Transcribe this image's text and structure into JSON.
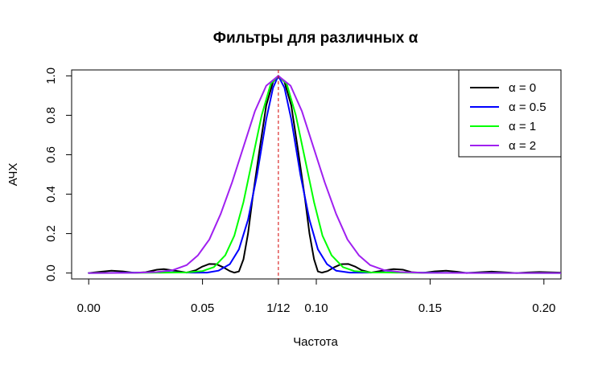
{
  "chart_data": {
    "type": "line",
    "title": "Фильтры для различных α",
    "xlabel": "Частота",
    "ylabel": "АЧХ",
    "xlim": [
      -0.0075,
      0.2075
    ],
    "ylim": [
      -0.03,
      1.03
    ],
    "x_ticks": [
      0.0,
      0.05,
      0.0833333,
      0.1,
      0.15,
      0.2
    ],
    "x_tick_labels": [
      "0.00",
      "0.05",
      "1/12",
      "0.10",
      "0.15",
      "0.20"
    ],
    "y_ticks": [
      0.0,
      0.2,
      0.4,
      0.6,
      0.8,
      1.0
    ],
    "y_tick_labels": [
      "0.0",
      "0.2",
      "0.4",
      "0.6",
      "0.8",
      "1.0"
    ],
    "vline": {
      "x": 0.0833333,
      "color": "#d40000",
      "style": "dashed"
    },
    "legend": {
      "position": "top-right"
    },
    "grid": false,
    "series": [
      {
        "name": "α = 0",
        "color": "#000000",
        "points": [
          [
            0.0,
            0.0
          ],
          [
            0.005,
            0.006
          ],
          [
            0.01,
            0.012
          ],
          [
            0.015,
            0.008
          ],
          [
            0.02,
            0.001
          ],
          [
            0.025,
            0.004
          ],
          [
            0.03,
            0.017
          ],
          [
            0.033,
            0.02
          ],
          [
            0.038,
            0.012
          ],
          [
            0.043,
            0.002
          ],
          [
            0.047,
            0.014
          ],
          [
            0.05,
            0.033
          ],
          [
            0.053,
            0.046
          ],
          [
            0.056,
            0.045
          ],
          [
            0.059,
            0.03
          ],
          [
            0.062,
            0.01
          ],
          [
            0.064,
            0.002
          ],
          [
            0.066,
            0.008
          ],
          [
            0.068,
            0.07
          ],
          [
            0.07,
            0.2
          ],
          [
            0.072,
            0.38
          ],
          [
            0.075,
            0.62
          ],
          [
            0.078,
            0.85
          ],
          [
            0.081,
            0.97
          ],
          [
            0.0833,
            1.0
          ],
          [
            0.086,
            0.97
          ],
          [
            0.089,
            0.85
          ],
          [
            0.092,
            0.62
          ],
          [
            0.095,
            0.38
          ],
          [
            0.097,
            0.2
          ],
          [
            0.099,
            0.07
          ],
          [
            0.1007,
            0.008
          ],
          [
            0.1025,
            0.002
          ],
          [
            0.105,
            0.01
          ],
          [
            0.108,
            0.03
          ],
          [
            0.111,
            0.045
          ],
          [
            0.114,
            0.046
          ],
          [
            0.117,
            0.033
          ],
          [
            0.12,
            0.014
          ],
          [
            0.124,
            0.002
          ],
          [
            0.129,
            0.012
          ],
          [
            0.134,
            0.02
          ],
          [
            0.138,
            0.017
          ],
          [
            0.142,
            0.004
          ],
          [
            0.147,
            0.001
          ],
          [
            0.152,
            0.008
          ],
          [
            0.157,
            0.012
          ],
          [
            0.162,
            0.006
          ],
          [
            0.166,
            0.0
          ],
          [
            0.172,
            0.004
          ],
          [
            0.177,
            0.007
          ],
          [
            0.182,
            0.004
          ],
          [
            0.188,
            0.0
          ],
          [
            0.193,
            0.003
          ],
          [
            0.198,
            0.005
          ],
          [
            0.2075,
            0.002
          ]
        ]
      },
      {
        "name": "α = 0.5",
        "color": "#0000ff",
        "points": [
          [
            0.0,
            0.0
          ],
          [
            0.02,
            0.002
          ],
          [
            0.035,
            0.004
          ],
          [
            0.045,
            0.002
          ],
          [
            0.052,
            0.002
          ],
          [
            0.057,
            0.012
          ],
          [
            0.062,
            0.045
          ],
          [
            0.066,
            0.12
          ],
          [
            0.07,
            0.27
          ],
          [
            0.074,
            0.5
          ],
          [
            0.078,
            0.78
          ],
          [
            0.081,
            0.94
          ],
          [
            0.0833,
            1.0
          ],
          [
            0.086,
            0.94
          ],
          [
            0.089,
            0.78
          ],
          [
            0.093,
            0.5
          ],
          [
            0.097,
            0.27
          ],
          [
            0.1007,
            0.12
          ],
          [
            0.1047,
            0.045
          ],
          [
            0.1087,
            0.012
          ],
          [
            0.1147,
            0.002
          ],
          [
            0.122,
            0.002
          ],
          [
            0.132,
            0.004
          ],
          [
            0.147,
            0.002
          ],
          [
            0.16,
            0.001
          ],
          [
            0.18,
            0.001
          ],
          [
            0.2075,
            0.0
          ]
        ]
      },
      {
        "name": "α = 1",
        "color": "#00ff00",
        "points": [
          [
            0.0,
            0.0
          ],
          [
            0.02,
            0.001
          ],
          [
            0.035,
            0.002
          ],
          [
            0.043,
            0.003
          ],
          [
            0.05,
            0.01
          ],
          [
            0.055,
            0.03
          ],
          [
            0.06,
            0.09
          ],
          [
            0.064,
            0.19
          ],
          [
            0.068,
            0.36
          ],
          [
            0.072,
            0.58
          ],
          [
            0.076,
            0.8
          ],
          [
            0.08,
            0.96
          ],
          [
            0.0833,
            1.0
          ],
          [
            0.087,
            0.96
          ],
          [
            0.091,
            0.8
          ],
          [
            0.095,
            0.58
          ],
          [
            0.099,
            0.36
          ],
          [
            0.1027,
            0.19
          ],
          [
            0.1067,
            0.09
          ],
          [
            0.1117,
            0.03
          ],
          [
            0.1167,
            0.01
          ],
          [
            0.124,
            0.003
          ],
          [
            0.135,
            0.002
          ],
          [
            0.15,
            0.001
          ],
          [
            0.18,
            0.0
          ],
          [
            0.2075,
            0.0
          ]
        ]
      },
      {
        "name": "α = 2",
        "color": "#a020f0",
        "points": [
          [
            0.0,
            0.0
          ],
          [
            0.02,
            0.001
          ],
          [
            0.03,
            0.005
          ],
          [
            0.037,
            0.015
          ],
          [
            0.043,
            0.04
          ],
          [
            0.048,
            0.09
          ],
          [
            0.053,
            0.17
          ],
          [
            0.058,
            0.3
          ],
          [
            0.063,
            0.46
          ],
          [
            0.068,
            0.64
          ],
          [
            0.073,
            0.82
          ],
          [
            0.078,
            0.95
          ],
          [
            0.0833,
            1.0
          ],
          [
            0.0887,
            0.95
          ],
          [
            0.0937,
            0.82
          ],
          [
            0.0987,
            0.64
          ],
          [
            0.1037,
            0.46
          ],
          [
            0.1087,
            0.3
          ],
          [
            0.1137,
            0.17
          ],
          [
            0.1187,
            0.09
          ],
          [
            0.1237,
            0.04
          ],
          [
            0.1297,
            0.015
          ],
          [
            0.1367,
            0.005
          ],
          [
            0.147,
            0.001
          ],
          [
            0.17,
            0.0
          ],
          [
            0.2075,
            0.0
          ]
        ]
      }
    ]
  }
}
